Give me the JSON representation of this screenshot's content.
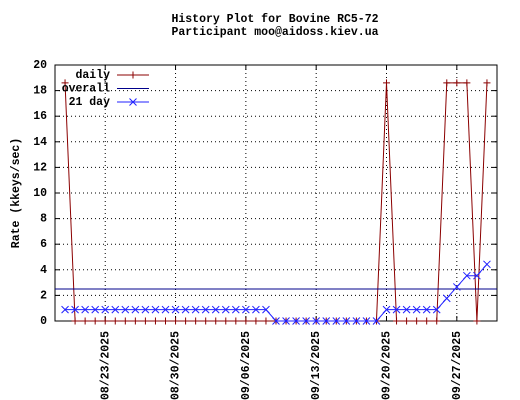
{
  "chart_data": {
    "type": "line",
    "title": "History Plot for Bovine RC5-72",
    "subtitle": "Participant moo@aidoss.kiev.ua",
    "ylabel": "Rate (kkeys/sec)",
    "x": [
      "2025-08-19",
      "2025-08-20",
      "2025-08-21",
      "2025-08-22",
      "2025-08-23",
      "2025-08-24",
      "2025-08-25",
      "2025-08-26",
      "2025-08-27",
      "2025-08-28",
      "2025-08-29",
      "2025-08-30",
      "2025-08-31",
      "2025-09-01",
      "2025-09-02",
      "2025-09-03",
      "2025-09-04",
      "2025-09-05",
      "2025-09-06",
      "2025-09-07",
      "2025-09-08",
      "2025-09-09",
      "2025-09-10",
      "2025-09-11",
      "2025-09-12",
      "2025-09-13",
      "2025-09-14",
      "2025-09-15",
      "2025-09-16",
      "2025-09-17",
      "2025-09-18",
      "2025-09-19",
      "2025-09-20",
      "2025-09-21",
      "2025-09-22",
      "2025-09-23",
      "2025-09-24",
      "2025-09-25",
      "2025-09-26",
      "2025-09-27",
      "2025-09-28",
      "2025-09-29",
      "2025-09-30"
    ],
    "series": [
      {
        "name": "daily",
        "color": "#8b0000",
        "marker": "plus",
        "values": [
          18.6,
          0,
          0,
          0,
          0,
          0,
          0,
          0,
          0,
          0,
          0,
          0,
          0,
          0,
          0,
          0,
          0,
          0,
          0,
          0,
          0,
          0,
          0,
          0,
          0,
          0,
          0,
          0,
          0,
          0,
          0,
          0,
          18.6,
          0,
          0,
          0,
          0,
          0,
          18.6,
          18.6,
          18.6,
          0,
          18.6
        ]
      },
      {
        "name": "overall",
        "color": "#00008b",
        "value": 2.5
      },
      {
        "name": "21 day",
        "color": "#2020ff",
        "marker": "cross",
        "values": [
          0.89,
          0.89,
          0.89,
          0.89,
          0.89,
          0.89,
          0.89,
          0.89,
          0.89,
          0.89,
          0.89,
          0.89,
          0.89,
          0.89,
          0.89,
          0.89,
          0.89,
          0.89,
          0.89,
          0.89,
          0.89,
          0,
          0,
          0,
          0,
          0,
          0,
          0,
          0,
          0,
          0,
          0,
          0.89,
          0.89,
          0.89,
          0.89,
          0.89,
          0.89,
          1.77,
          2.66,
          3.54,
          3.54,
          4.43
        ]
      }
    ],
    "xlim": [
      "2025-08-18",
      "2025-10-01"
    ],
    "xticks": [
      {
        "value": "2025-08-23",
        "label": "08/23/2025"
      },
      {
        "value": "2025-08-30",
        "label": "08/30/2025"
      },
      {
        "value": "2025-09-06",
        "label": "09/06/2025"
      },
      {
        "value": "2025-09-13",
        "label": "09/13/2025"
      },
      {
        "value": "2025-09-20",
        "label": "09/20/2025"
      },
      {
        "value": "2025-09-27",
        "label": "09/27/2025"
      }
    ],
    "ylim": [
      0,
      20
    ],
    "yticks": [
      0,
      2,
      4,
      6,
      8,
      10,
      12,
      14,
      16,
      18,
      20
    ],
    "grid": true,
    "legend": "top-left"
  }
}
